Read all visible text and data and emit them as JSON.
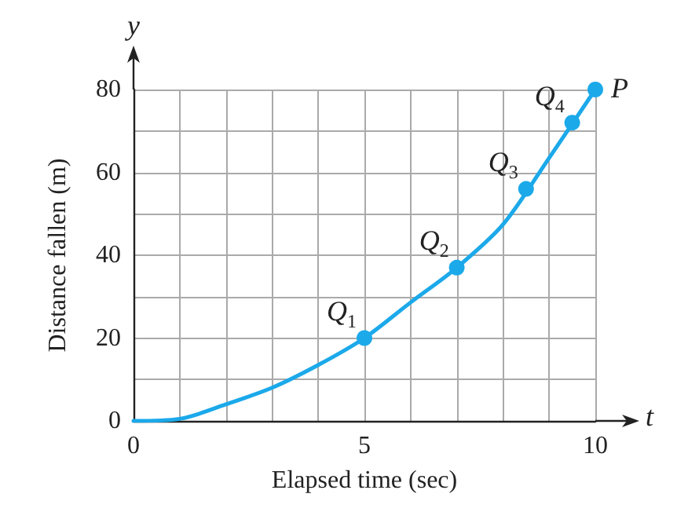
{
  "chart_data": {
    "type": "line",
    "xlabel": "Elapsed time (sec)",
    "ylabel": "Distance fallen (m)",
    "annotations": [
      "y",
      "t",
      {
        "text": "Q$_{1}$",
        "x": 5,
        "y": 20
      },
      {
        "text": "Q$_{2}$",
        "x": 7,
        "y": 37
      },
      {
        "text": "Q$_{3}$",
        "x": 8.5,
        "y": 56
      },
      {
        "text": "Q$_{4}$",
        "x": 9.5,
        "y": 72
      },
      {
        "text": "P",
        "x": 10,
        "y": 80
      }
    ],
    "x": [
      0,
      1,
      2,
      3,
      4,
      5,
      6,
      7,
      8,
      9,
      10
    ],
    "series": [
      {
        "color": "#1ba9ea",
        "marker": "none",
        "values": [
          0,
          0.5,
          4,
          8,
          13.5,
          20,
          28.6,
          37,
          47.4,
          63.5,
          80
        ]
      },
      {
        "type": "scatter",
        "color": "#1ba9ea",
        "marker": "circle",
        "x": [
          5,
          7,
          8.5,
          9.5,
          10
        ],
        "values": [
          20,
          37,
          56,
          72,
          80
        ]
      }
    ],
    "xlim": [
      0,
      10
    ],
    "ylim": [
      0,
      80
    ],
    "xticks": [
      0,
      {
        "value": 1,
        "label": null
      },
      {
        "value": 2,
        "label": null
      },
      {
        "value": 3,
        "label": null
      },
      {
        "value": 4,
        "label": null
      },
      5,
      {
        "value": 6,
        "label": null
      },
      {
        "value": 7,
        "label": null
      },
      {
        "value": 8,
        "label": null
      },
      {
        "value": 9,
        "label": null
      },
      10
    ],
    "yticks": [
      0,
      {
        "value": 10,
        "label": null
      },
      20,
      {
        "value": 30,
        "label": null
      },
      40,
      {
        "value": 50,
        "label": null
      },
      60,
      {
        "value": 70,
        "label": null
      },
      80
    ],
    "grid": true
  }
}
